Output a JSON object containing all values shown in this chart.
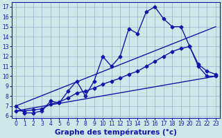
{
  "line1_x": [
    0,
    1,
    2,
    3,
    4,
    5,
    6,
    7,
    8,
    9,
    10,
    11,
    12,
    13,
    14,
    15,
    16,
    17,
    18,
    19,
    20,
    21,
    22,
    23
  ],
  "line1_y": [
    7.0,
    6.3,
    6.3,
    6.5,
    7.5,
    7.3,
    8.5,
    9.5,
    8.0,
    9.5,
    12.0,
    11.0,
    12.0,
    14.8,
    14.3,
    16.5,
    17.0,
    15.8,
    15.0,
    15.0,
    13.0,
    11.0,
    10.0,
    10.0
  ],
  "line2_x": [
    0,
    1,
    2,
    3,
    4,
    5,
    6,
    7,
    8,
    9,
    10,
    11,
    12,
    13,
    14,
    15,
    16,
    17,
    18,
    19,
    20,
    21,
    22,
    23
  ],
  "line2_y": [
    6.5,
    6.5,
    6.6,
    6.7,
    7.2,
    7.4,
    7.8,
    8.3,
    8.5,
    8.8,
    9.2,
    9.5,
    9.8,
    10.2,
    10.5,
    11.0,
    11.5,
    12.0,
    12.5,
    12.8,
    13.0,
    11.2,
    10.5,
    10.2
  ],
  "line3_x": [
    0,
    23
  ],
  "line3_y": [
    6.5,
    10.0
  ],
  "line4_x": [
    0,
    23
  ],
  "line4_y": [
    7.0,
    15.0
  ],
  "line_color": "#1414aa",
  "bg_color": "#cce8e8",
  "grid_color": "#9ab0c8",
  "xlabel": "Graphe des températures (°c)",
  "xlim": [
    -0.5,
    23.5
  ],
  "ylim": [
    5.8,
    17.5
  ],
  "xticks": [
    0,
    1,
    2,
    3,
    4,
    5,
    6,
    7,
    8,
    9,
    10,
    11,
    12,
    13,
    14,
    15,
    16,
    17,
    18,
    19,
    20,
    21,
    22,
    23
  ],
  "yticks": [
    6,
    7,
    8,
    9,
    10,
    11,
    12,
    13,
    14,
    15,
    16,
    17
  ],
  "xlabel_fontsize": 7.5,
  "tick_fontsize": 5.5,
  "marker": "D",
  "marker_size": 2.5,
  "line_width": 1.0
}
